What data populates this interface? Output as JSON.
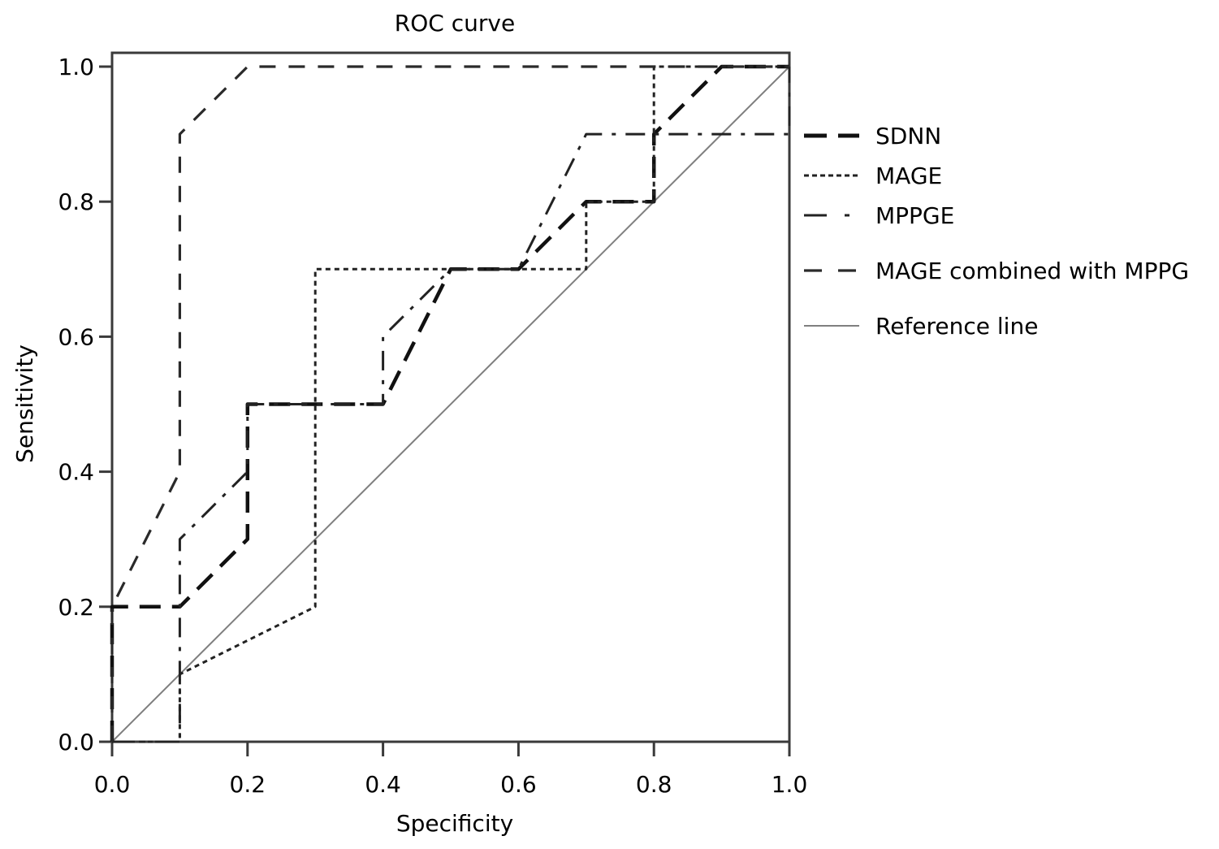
{
  "chart_data": {
    "type": "line",
    "title": "ROC curve",
    "xlabel": "Specificity",
    "ylabel": "Sensitivity",
    "xlim": [
      0,
      1
    ],
    "ylim": [
      0,
      1
    ],
    "x_ticks": [
      "0.0",
      "0.2",
      "0.4",
      "0.6",
      "0.8",
      "1.0"
    ],
    "y_ticks": [
      "0.0",
      "0.2",
      "0.4",
      "0.6",
      "0.8",
      "1.0"
    ],
    "x_tick_values": [
      0,
      0.2,
      0.4,
      0.6,
      0.8,
      1.0
    ],
    "y_tick_values": [
      0,
      0.2,
      0.4,
      0.6,
      0.8,
      1.0
    ],
    "grid": false,
    "legend_position": "right",
    "series": [
      {
        "name": "SDNN",
        "style": "long-dash",
        "color": "#000000",
        "points": [
          [
            0,
            0
          ],
          [
            0,
            0.2
          ],
          [
            0.1,
            0.2
          ],
          [
            0.2,
            0.3
          ],
          [
            0.2,
            0.5
          ],
          [
            0.4,
            0.5
          ],
          [
            0.5,
            0.7
          ],
          [
            0.6,
            0.7
          ],
          [
            0.7,
            0.8
          ],
          [
            0.8,
            0.8
          ],
          [
            0.8,
            0.9
          ],
          [
            0.9,
            1.0
          ],
          [
            1.0,
            1.0
          ]
        ]
      },
      {
        "name": "MAGE",
        "style": "dotted",
        "color": "#000000",
        "points": [
          [
            0,
            0
          ],
          [
            0.1,
            0
          ],
          [
            0.1,
            0.1
          ],
          [
            0.3,
            0.2
          ],
          [
            0.3,
            0.7
          ],
          [
            0.7,
            0.7
          ],
          [
            0.7,
            0.8
          ],
          [
            0.8,
            0.8
          ],
          [
            0.8,
            1.0
          ],
          [
            1.0,
            1.0
          ]
        ]
      },
      {
        "name": "MPPGE",
        "style": "dash-dot",
        "color": "#000000",
        "points": [
          [
            0,
            0
          ],
          [
            0.1,
            0
          ],
          [
            0.1,
            0.3
          ],
          [
            0.2,
            0.4
          ],
          [
            0.2,
            0.5
          ],
          [
            0.4,
            0.5
          ],
          [
            0.4,
            0.6
          ],
          [
            0.5,
            0.7
          ],
          [
            0.6,
            0.7
          ],
          [
            0.7,
            0.9
          ],
          [
            1.0,
            0.9
          ],
          [
            1.0,
            1.0
          ]
        ]
      },
      {
        "name": "MAGE combined with MPPG",
        "style": "dashed",
        "color": "#000000",
        "points": [
          [
            0,
            0
          ],
          [
            0,
            0.2
          ],
          [
            0.1,
            0.4
          ],
          [
            0.1,
            0.9
          ],
          [
            0.2,
            1.0
          ],
          [
            1.0,
            1.0
          ]
        ]
      },
      {
        "name": "Reference line",
        "style": "solid",
        "color": "#7f7f7f",
        "points": [
          [
            0,
            0
          ],
          [
            1,
            1
          ]
        ]
      }
    ]
  }
}
